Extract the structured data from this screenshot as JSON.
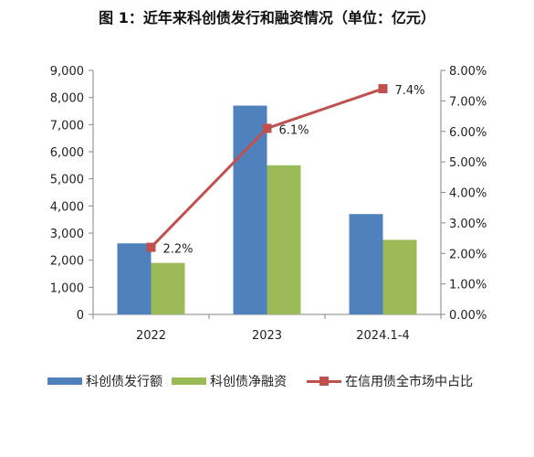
{
  "title": "图 1：近年来科创债发行和融资情况（单位：亿元）",
  "chart_data": {
    "type": "bar",
    "categories": [
      "2022",
      "2023",
      "2024.1-4"
    ],
    "series": [
      {
        "name": "科创债发行额",
        "type": "bar",
        "axis": "left",
        "color": "#4f81bd",
        "values": [
          2620,
          7700,
          3700
        ]
      },
      {
        "name": "科创债净融资",
        "type": "bar",
        "axis": "left",
        "color": "#9bbb59",
        "values": [
          1900,
          5500,
          2750
        ]
      },
      {
        "name": "在信用债全市场中占比",
        "type": "line",
        "axis": "right",
        "color": "#c0504d",
        "values": [
          2.2,
          6.1,
          7.4
        ],
        "data_labels": [
          "2.2%",
          "6.1%",
          "7.4%"
        ]
      }
    ],
    "left_axis": {
      "min": 0,
      "max": 9000,
      "step": 1000,
      "tick_labels": [
        "0",
        "1,000",
        "2,000",
        "3,000",
        "4,000",
        "5,000",
        "6,000",
        "7,000",
        "8,000",
        "9,000"
      ]
    },
    "right_axis": {
      "min": 0,
      "max": 8,
      "step": 1,
      "tick_labels": [
        "0.00%",
        "1.00%",
        "2.00%",
        "3.00%",
        "4.00%",
        "5.00%",
        "6.00%",
        "7.00%",
        "8.00%"
      ]
    },
    "grid": false,
    "legend_position": "bottom"
  }
}
